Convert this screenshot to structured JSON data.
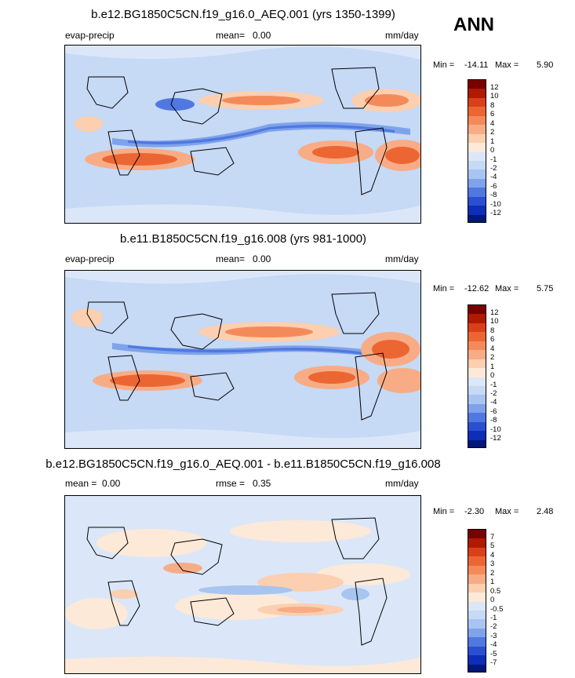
{
  "season": "ANN",
  "panels": [
    {
      "title": "b.e12.BG1850C5CN.f19_g16.0_AEQ.001 (yrs 1350-1399)",
      "left_label": "evap-precip",
      "stat_label": "mean=",
      "stat_value": "0.00",
      "units": "mm/day",
      "min_label": "Min =",
      "min_value": "-14.11",
      "max_label": "Max =",
      "max_value": "5.90",
      "colorbar_levels": [
        "12",
        "10",
        "8",
        "6",
        "4",
        "2",
        "1",
        "0",
        "-1",
        "-2",
        "-4",
        "-6",
        "-8",
        "-10",
        "-12"
      ]
    },
    {
      "title": "b.e11.B1850C5CN.f19_g16.008 (yrs 981-1000)",
      "left_label": "evap-precip",
      "stat_label": "mean=",
      "stat_value": "0.00",
      "units": "mm/day",
      "min_label": "Min =",
      "min_value": "-12.62",
      "max_label": "Max =",
      "max_value": "5.75",
      "colorbar_levels": [
        "12",
        "10",
        "8",
        "6",
        "4",
        "2",
        "1",
        "0",
        "-1",
        "-2",
        "-4",
        "-6",
        "-8",
        "-10",
        "-12"
      ]
    },
    {
      "title": "b.e12.BG1850C5CN.f19_g16.0_AEQ.001 - b.e11.B1850C5CN.f19_g16.008",
      "left_label": "mean =",
      "left_value": "0.00",
      "stat_label": "rmse =",
      "stat_value": "0.35",
      "units": "mm/day",
      "min_label": "Min =",
      "min_value": "-2.30",
      "max_label": "Max =",
      "max_value": "2.48",
      "colorbar_levels": [
        "7",
        "5",
        "4",
        "3",
        "2",
        "1",
        "0.5",
        "0",
        "-0.5",
        "-1",
        "-2",
        "-3",
        "-4",
        "-5",
        "-7"
      ]
    }
  ],
  "colors": {
    "colorbar_fills": [
      "#7a0000",
      "#b01a00",
      "#d9401a",
      "#ec6633",
      "#f48a5a",
      "#f8ac85",
      "#fbcfb0",
      "#fde9d8",
      "#dbe7f8",
      "#c6d9f5",
      "#a8c4f0",
      "#7fa3ea",
      "#5078e0",
      "#2a4fd0",
      "#0e2eb8",
      "#00187a"
    ]
  },
  "chart_data": [
    {
      "type": "heatmap",
      "title": "b.e12.BG1850C5CN.f19_g16.0_AEQ.001 (yrs 1350-1399)",
      "variable": "evap-precip",
      "units": "mm/day",
      "mean": 0.0,
      "min": -14.11,
      "max": 5.9,
      "contour_levels": [
        -12,
        -10,
        -8,
        -6,
        -4,
        -2,
        -1,
        0,
        1,
        2,
        4,
        6,
        8,
        10,
        12
      ]
    },
    {
      "type": "heatmap",
      "title": "b.e11.B1850C5CN.f19_g16.008 (yrs 981-1000)",
      "variable": "evap-precip",
      "units": "mm/day",
      "mean": 0.0,
      "min": -12.62,
      "max": 5.75,
      "contour_levels": [
        -12,
        -10,
        -8,
        -6,
        -4,
        -2,
        -1,
        0,
        1,
        2,
        4,
        6,
        8,
        10,
        12
      ]
    },
    {
      "type": "heatmap",
      "title": "b.e12.BG1850C5CN.f19_g16.0_AEQ.001 - b.e11.B1850C5CN.f19_g16.008",
      "units": "mm/day",
      "mean": 0.0,
      "rmse": 0.35,
      "min": -2.3,
      "max": 2.48,
      "contour_levels": [
        -7,
        -5,
        -4,
        -3,
        -2,
        -1,
        -0.5,
        0,
        0.5,
        1,
        2,
        3,
        4,
        5,
        7
      ]
    }
  ]
}
